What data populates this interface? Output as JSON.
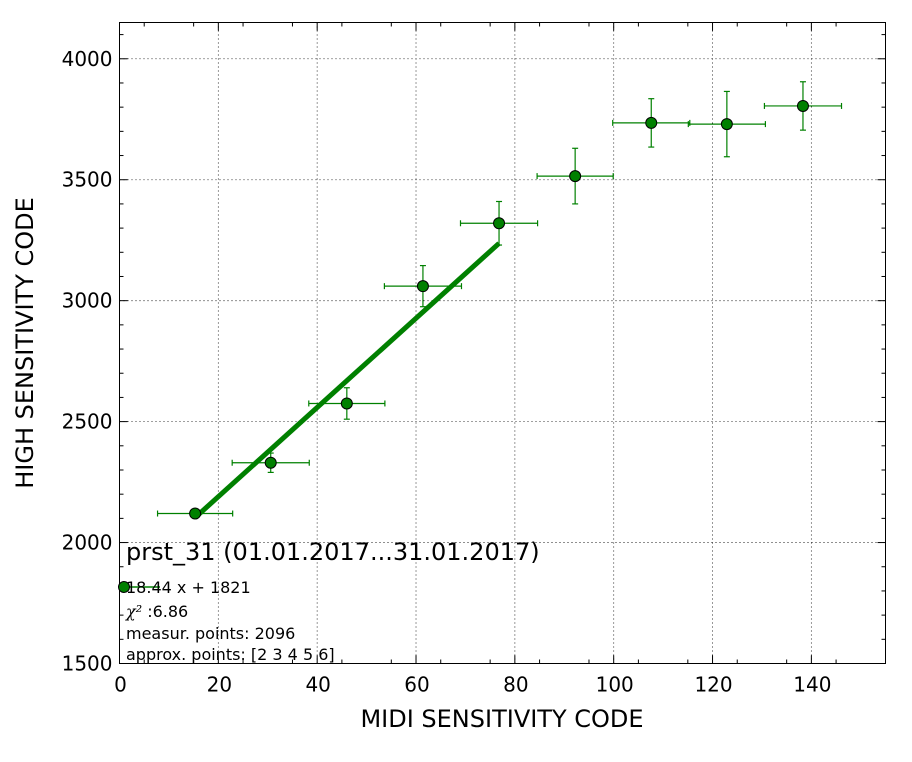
{
  "chart_data": {
    "type": "scatter",
    "title": "prst_31 (01.01.2017...31.01.2017)",
    "xlabel": "MIDI SENSITIVITY CODE",
    "ylabel": "HIGH SENSITIVITY CODE",
    "xlim": [
      0,
      155
    ],
    "ylim": [
      1500,
      4150
    ],
    "xticks": [
      0,
      20,
      40,
      60,
      80,
      100,
      120,
      140
    ],
    "yticks": [
      1500,
      2000,
      2500,
      3000,
      3500,
      4000
    ],
    "grid": true,
    "color": "#008000",
    "series": [
      {
        "points": [
          {
            "x": 15.3,
            "y": 2120,
            "xerr": 7.6,
            "yerr": 10
          },
          {
            "x": 30.6,
            "y": 2330,
            "xerr": 7.8,
            "yerr": 40
          },
          {
            "x": 46.0,
            "y": 2575,
            "xerr": 7.7,
            "yerr": 65
          },
          {
            "x": 61.4,
            "y": 3060,
            "xerr": 7.8,
            "yerr": 85
          },
          {
            "x": 76.8,
            "y": 3320,
            "xerr": 7.8,
            "yerr": 90
          },
          {
            "x": 92.2,
            "y": 3515,
            "xerr": 7.7,
            "yerr": 115
          },
          {
            "x": 107.6,
            "y": 3735,
            "xerr": 7.8,
            "yerr": 100
          },
          {
            "x": 122.9,
            "y": 3730,
            "xerr": 7.8,
            "yerr": 135
          },
          {
            "x": 138.3,
            "y": 3805,
            "xerr": 7.8,
            "yerr": 100
          }
        ]
      }
    ],
    "fit": {
      "slope": 18.44,
      "intercept": 1821,
      "x_range": [
        15.3,
        76.8
      ]
    },
    "legend": {
      "equation": "18.44 x + 1821",
      "chi2_label": "χ²",
      "chi2_value": ":6.86",
      "measur_points": "measur. points: 2096",
      "approx_points": "approx. points: [2 3 4 5 6]"
    }
  }
}
